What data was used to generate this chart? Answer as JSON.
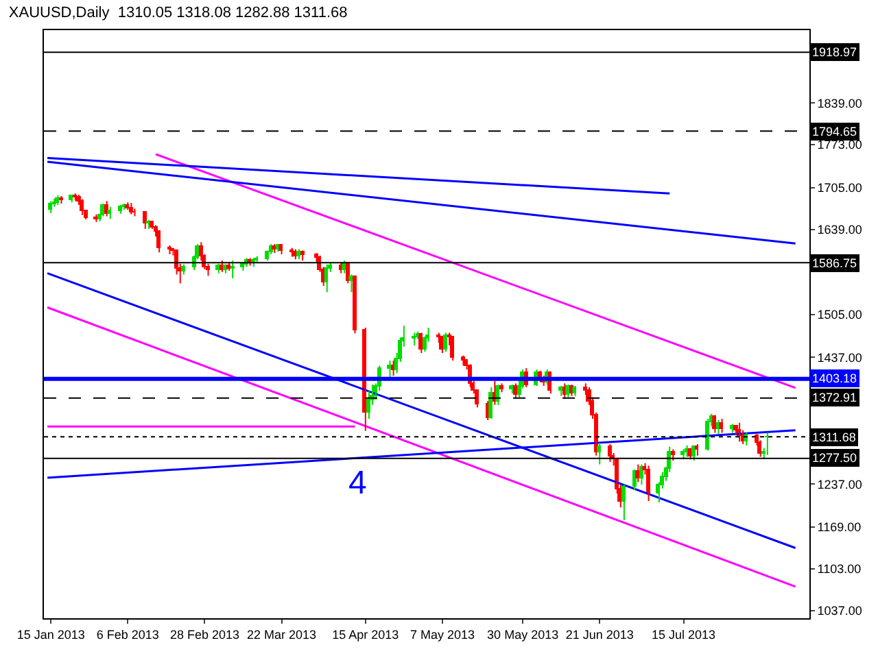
{
  "chart_data": {
    "type": "candlestick",
    "title": "XAUUSD,Daily  1310.05 1318.08 1282.88 1311.68",
    "x": [
      "2013-01-15",
      "2013-01-16",
      "2013-01-17",
      "2013-01-18",
      "2013-01-21",
      "2013-01-22",
      "2013-01-23",
      "2013-01-24",
      "2013-01-25",
      "2013-01-28",
      "2013-01-29",
      "2013-01-30",
      "2013-01-31",
      "2013-02-01",
      "2013-02-04",
      "2013-02-05",
      "2013-02-06",
      "2013-02-07",
      "2013-02-08",
      "2013-02-11",
      "2013-02-12",
      "2013-02-13",
      "2013-02-14",
      "2013-02-15",
      "2013-02-18",
      "2013-02-19",
      "2013-02-20",
      "2013-02-21",
      "2013-02-22",
      "2013-02-25",
      "2013-02-26",
      "2013-02-27",
      "2013-02-28",
      "2013-03-01",
      "2013-03-04",
      "2013-03-05",
      "2013-03-06",
      "2013-03-07",
      "2013-03-08",
      "2013-03-11",
      "2013-03-12",
      "2013-03-13",
      "2013-03-14",
      "2013-03-15",
      "2013-03-18",
      "2013-03-19",
      "2013-03-20",
      "2013-03-21",
      "2013-03-22",
      "2013-03-25",
      "2013-03-26",
      "2013-03-27",
      "2013-03-28",
      "2013-04-01",
      "2013-04-02",
      "2013-04-03",
      "2013-04-04",
      "2013-04-05",
      "2013-04-08",
      "2013-04-09",
      "2013-04-10",
      "2013-04-11",
      "2013-04-12",
      "2013-04-15",
      "2013-04-16",
      "2013-04-17",
      "2013-04-18",
      "2013-04-19",
      "2013-04-22",
      "2013-04-23",
      "2013-04-24",
      "2013-04-25",
      "2013-04-26",
      "2013-04-29",
      "2013-04-30",
      "2013-05-01",
      "2013-05-02",
      "2013-05-03",
      "2013-05-06",
      "2013-05-07",
      "2013-05-08",
      "2013-05-09",
      "2013-05-10",
      "2013-05-13",
      "2013-05-14",
      "2013-05-15",
      "2013-05-16",
      "2013-05-17",
      "2013-05-20",
      "2013-05-21",
      "2013-05-22",
      "2013-05-23",
      "2013-05-24",
      "2013-05-27",
      "2013-05-28",
      "2013-05-29",
      "2013-05-30",
      "2013-05-31",
      "2013-06-03",
      "2013-06-04",
      "2013-06-05",
      "2013-06-06",
      "2013-06-07",
      "2013-06-10",
      "2013-06-11",
      "2013-06-12",
      "2013-06-13",
      "2013-06-14",
      "2013-06-17",
      "2013-06-18",
      "2013-06-19",
      "2013-06-20",
      "2013-06-21",
      "2013-06-24",
      "2013-06-25",
      "2013-06-26",
      "2013-06-27",
      "2013-06-28",
      "2013-07-01",
      "2013-07-02",
      "2013-07-03",
      "2013-07-04",
      "2013-07-05",
      "2013-07-08",
      "2013-07-09",
      "2013-07-10",
      "2013-07-11",
      "2013-07-12",
      "2013-07-15",
      "2013-07-16",
      "2013-07-17",
      "2013-07-18",
      "2013-07-19",
      "2013-07-22",
      "2013-07-23",
      "2013-07-24",
      "2013-07-25",
      "2013-07-26",
      "2013-07-29",
      "2013-07-30",
      "2013-07-31",
      "2013-08-01",
      "2013-08-02",
      "2013-08-05",
      "2013-08-06",
      "2013-08-07",
      "2013-08-08"
    ],
    "ohlc": [
      [
        1670,
        1684,
        1665,
        1680
      ],
      [
        1680,
        1688,
        1675,
        1682
      ],
      [
        1682,
        1693,
        1678,
        1688
      ],
      [
        1688,
        1692,
        1680,
        1686
      ],
      [
        1686,
        1694,
        1682,
        1692
      ],
      [
        1692,
        1696,
        1685,
        1690
      ],
      [
        1690,
        1694,
        1678,
        1684
      ],
      [
        1684,
        1687,
        1662,
        1668
      ],
      [
        1668,
        1670,
        1655,
        1658
      ],
      [
        1658,
        1663,
        1651,
        1656
      ],
      [
        1656,
        1664,
        1652,
        1662
      ],
      [
        1662,
        1680,
        1660,
        1677
      ],
      [
        1677,
        1684,
        1660,
        1663
      ],
      [
        1663,
        1675,
        1656,
        1668
      ],
      [
        1668,
        1678,
        1664,
        1674
      ],
      [
        1674,
        1680,
        1670,
        1676
      ],
      [
        1676,
        1682,
        1670,
        1672
      ],
      [
        1672,
        1681,
        1663,
        1667
      ],
      [
        1667,
        1672,
        1660,
        1666
      ],
      [
        1666,
        1668,
        1640,
        1648
      ],
      [
        1648,
        1654,
        1640,
        1650
      ],
      [
        1650,
        1652,
        1640,
        1643
      ],
      [
        1643,
        1646,
        1628,
        1635
      ],
      [
        1635,
        1638,
        1603,
        1610
      ],
      [
        1610,
        1614,
        1600,
        1607
      ],
      [
        1607,
        1610,
        1598,
        1605
      ],
      [
        1605,
        1607,
        1568,
        1578
      ],
      [
        1578,
        1585,
        1554,
        1572
      ],
      [
        1572,
        1584,
        1568,
        1580
      ],
      [
        1580,
        1598,
        1575,
        1595
      ],
      [
        1595,
        1616,
        1592,
        1612
      ],
      [
        1612,
        1619,
        1590,
        1596
      ],
      [
        1596,
        1600,
        1576,
        1580
      ],
      [
        1580,
        1585,
        1566,
        1576
      ],
      [
        1576,
        1585,
        1570,
        1582
      ],
      [
        1582,
        1590,
        1572,
        1576
      ],
      [
        1576,
        1584,
        1570,
        1582
      ],
      [
        1582,
        1588,
        1574,
        1578
      ],
      [
        1578,
        1590,
        1562,
        1580
      ],
      [
        1580,
        1588,
        1574,
        1584
      ],
      [
        1584,
        1594,
        1580,
        1590
      ],
      [
        1590,
        1594,
        1582,
        1588
      ],
      [
        1588,
        1594,
        1580,
        1590
      ],
      [
        1590,
        1597,
        1586,
        1593
      ],
      [
        1593,
        1606,
        1590,
        1604
      ],
      [
        1604,
        1616,
        1600,
        1612
      ],
      [
        1612,
        1616,
        1602,
        1608
      ],
      [
        1608,
        1616,
        1604,
        1614
      ],
      [
        1614,
        1616,
        1600,
        1606
      ],
      [
        1606,
        1610,
        1596,
        1604
      ],
      [
        1604,
        1608,
        1592,
        1596
      ],
      [
        1596,
        1608,
        1592,
        1604
      ],
      [
        1604,
        1606,
        1590,
        1598
      ],
      [
        1598,
        1602,
        1588,
        1594
      ],
      [
        1594,
        1598,
        1572,
        1576
      ],
      [
        1576,
        1580,
        1550,
        1556
      ],
      [
        1556,
        1584,
        1540,
        1578
      ],
      [
        1578,
        1588,
        1572,
        1582
      ],
      [
        1582,
        1586,
        1570,
        1574
      ],
      [
        1574,
        1590,
        1570,
        1586
      ],
      [
        1586,
        1588,
        1554,
        1558
      ],
      [
        1558,
        1568,
        1540,
        1564
      ],
      [
        1564,
        1566,
        1475,
        1480
      ],
      [
        1480,
        1484,
        1321,
        1350
      ],
      [
        1350,
        1384,
        1340,
        1370
      ],
      [
        1370,
        1394,
        1362,
        1376
      ],
      [
        1376,
        1396,
        1370,
        1392
      ],
      [
        1392,
        1424,
        1384,
        1420
      ],
      [
        1420,
        1432,
        1404,
        1424
      ],
      [
        1424,
        1432,
        1408,
        1416
      ],
      [
        1416,
        1444,
        1412,
        1434
      ],
      [
        1434,
        1468,
        1430,
        1462
      ],
      [
        1462,
        1487,
        1454,
        1466
      ],
      [
        1466,
        1476,
        1456,
        1470
      ],
      [
        1470,
        1478,
        1466,
        1474
      ],
      [
        1474,
        1476,
        1444,
        1450
      ],
      [
        1450,
        1470,
        1446,
        1466
      ],
      [
        1466,
        1484,
        1462,
        1472
      ],
      [
        1472,
        1476,
        1460,
        1468
      ],
      [
        1468,
        1470,
        1444,
        1450
      ],
      [
        1450,
        1476,
        1446,
        1472
      ],
      [
        1472,
        1476,
        1456,
        1468
      ],
      [
        1468,
        1470,
        1432,
        1436
      ],
      [
        1436,
        1440,
        1424,
        1432
      ],
      [
        1432,
        1434,
        1418,
        1424
      ],
      [
        1424,
        1426,
        1390,
        1396
      ],
      [
        1396,
        1400,
        1380,
        1384
      ],
      [
        1384,
        1386,
        1358,
        1362
      ],
      [
        1362,
        1368,
        1338,
        1342
      ],
      [
        1342,
        1390,
        1340,
        1380
      ],
      [
        1380,
        1400,
        1362,
        1368
      ],
      [
        1368,
        1394,
        1362,
        1390
      ],
      [
        1390,
        1396,
        1382,
        1386
      ],
      [
        1386,
        1394,
        1380,
        1390
      ],
      [
        1390,
        1396,
        1372,
        1378
      ],
      [
        1378,
        1400,
        1374,
        1392
      ],
      [
        1392,
        1418,
        1388,
        1412
      ],
      [
        1412,
        1420,
        1390,
        1394
      ],
      [
        1394,
        1418,
        1392,
        1412
      ],
      [
        1412,
        1416,
        1398,
        1402
      ],
      [
        1402,
        1408,
        1392,
        1398
      ],
      [
        1398,
        1418,
        1394,
        1412
      ],
      [
        1412,
        1414,
        1380,
        1384
      ],
      [
        1384,
        1392,
        1376,
        1388
      ],
      [
        1388,
        1396,
        1372,
        1378
      ],
      [
        1378,
        1394,
        1374,
        1390
      ],
      [
        1390,
        1394,
        1376,
        1380
      ],
      [
        1380,
        1392,
        1376,
        1388
      ],
      [
        1388,
        1396,
        1378,
        1384
      ],
      [
        1384,
        1390,
        1362,
        1368
      ],
      [
        1368,
        1374,
        1340,
        1346
      ],
      [
        1346,
        1350,
        1282,
        1288
      ],
      [
        1288,
        1302,
        1268,
        1296
      ],
      [
        1296,
        1300,
        1272,
        1280
      ],
      [
        1280,
        1286,
        1266,
        1276
      ],
      [
        1276,
        1278,
        1222,
        1228
      ],
      [
        1228,
        1236,
        1200,
        1210
      ],
      [
        1210,
        1236,
        1180,
        1232
      ],
      [
        1232,
        1260,
        1228,
        1256
      ],
      [
        1256,
        1268,
        1240,
        1246
      ],
      [
        1246,
        1268,
        1236,
        1264
      ],
      [
        1264,
        1270,
        1252,
        1258
      ],
      [
        1258,
        1266,
        1210,
        1222
      ],
      [
        1222,
        1240,
        1208,
        1236
      ],
      [
        1236,
        1256,
        1230,
        1248
      ],
      [
        1248,
        1264,
        1242,
        1260
      ],
      [
        1260,
        1296,
        1256,
        1288
      ],
      [
        1288,
        1292,
        1274,
        1282
      ],
      [
        1282,
        1292,
        1276,
        1288
      ],
      [
        1288,
        1298,
        1280,
        1292
      ],
      [
        1292,
        1294,
        1276,
        1280
      ],
      [
        1280,
        1298,
        1274,
        1296
      ],
      [
        1296,
        1300,
        1282,
        1292
      ],
      [
        1292,
        1340,
        1290,
        1334
      ],
      [
        1334,
        1348,
        1328,
        1344
      ],
      [
        1344,
        1346,
        1318,
        1324
      ],
      [
        1324,
        1338,
        1316,
        1332
      ],
      [
        1332,
        1340,
        1318,
        1324
      ],
      [
        1324,
        1332,
        1318,
        1328
      ],
      [
        1328,
        1330,
        1316,
        1322
      ],
      [
        1322,
        1334,
        1304,
        1314
      ],
      [
        1314,
        1322,
        1300,
        1304
      ],
      [
        1304,
        1318,
        1298,
        1314
      ],
      [
        1314,
        1316,
        1298,
        1302
      ],
      [
        1302,
        1306,
        1280,
        1284
      ],
      [
        1284,
        1294,
        1276,
        1288
      ],
      [
        1310.05,
        1318.08,
        1282.88,
        1311.68
      ]
    ],
    "series": [
      {
        "type": "line",
        "color": "#ff00ff",
        "x": [
          "2013-02-14",
          "2013-08-16"
        ],
        "values": [
          1758,
          1389
        ]
      },
      {
        "type": "line",
        "color": "#ff00ff",
        "x": [
          "2013-01-14",
          "2013-08-16"
        ],
        "values": [
          1516,
          1075
        ]
      },
      {
        "type": "line",
        "color": "#ff00ff",
        "x": [
          "2013-01-14",
          "2013-04-12"
        ],
        "values": [
          1328,
          1328
        ]
      },
      {
        "type": "line",
        "color": "#0000ff",
        "x": [
          "2013-01-14",
          "2013-07-11"
        ],
        "values": [
          1752,
          1696
        ]
      },
      {
        "type": "line",
        "color": "#0000ff",
        "x": [
          "2013-01-14",
          "2013-08-16"
        ],
        "values": [
          1746,
          1617
        ]
      },
      {
        "type": "line",
        "color": "#0000ff",
        "x": [
          "2013-01-14",
          "2013-08-16"
        ],
        "values": [
          1570,
          1136
        ]
      },
      {
        "type": "line",
        "color": "#0000ff",
        "x": [
          "2013-01-14",
          "2013-08-16"
        ],
        "values": [
          1247,
          1322
        ]
      }
    ],
    "ref_lines": [
      {
        "axis": "y",
        "value": 1918.97,
        "label": "1918.97",
        "color": "#000000",
        "line_style": "solid"
      },
      {
        "axis": "y",
        "value": 1794.65,
        "label": "1794.65",
        "color": "#000000",
        "line_style": "dashed"
      },
      {
        "axis": "y",
        "value": 1586.75,
        "label": "1586.75",
        "color": "#000000",
        "line_style": "solid"
      },
      {
        "axis": "y",
        "value": 1403.18,
        "label": "1403.18",
        "color": "#0000ff",
        "line_style": "solid"
      },
      {
        "axis": "y",
        "value": 1372.91,
        "label": "1372.91",
        "color": "#000000",
        "line_style": "dashed"
      },
      {
        "axis": "y",
        "value": 1311.68,
        "label": "1311.68",
        "color": "#000000",
        "line_style": "dotted"
      },
      {
        "axis": "y",
        "value": 1277.5,
        "label": "1277.50",
        "color": "#000000",
        "line_style": "solid"
      }
    ],
    "annotations": [
      "4"
    ],
    "xlim": [
      "2013-01-13",
      "2013-08-20"
    ],
    "xticks": [
      {
        "value": "2013-01-15",
        "label": "15 Jan 2013"
      },
      {
        "value": "2013-02-06",
        "label": "6 Feb 2013"
      },
      {
        "value": "2013-02-28",
        "label": "28 Feb 2013"
      },
      {
        "value": "2013-03-22",
        "label": "22 Mar 2013"
      },
      {
        "value": "2013-04-15",
        "label": "15 Apr 2013"
      },
      {
        "value": "2013-05-07",
        "label": "7 May 2013"
      },
      {
        "value": "2013-05-30",
        "label": "30 May 2013"
      },
      {
        "value": "2013-06-21",
        "label": "21 Jun 2013"
      },
      {
        "value": "2013-07-15",
        "label": "15 Jul 2013"
      }
    ],
    "ylim": [
      1025,
      1954
    ],
    "yticks": [
      {
        "value": 1037,
        "label": "1037.00"
      },
      {
        "value": 1103,
        "label": "1103.00"
      },
      {
        "value": 1169,
        "label": "1169.00"
      },
      {
        "value": 1237,
        "label": "1237.00"
      },
      {
        "value": 1437,
        "label": "1437.00"
      },
      {
        "value": 1505,
        "label": "1505.00"
      },
      {
        "value": 1639,
        "label": "1639.00"
      },
      {
        "value": 1705,
        "label": "1705.00"
      },
      {
        "value": 1773,
        "label": "1773.00"
      },
      {
        "value": 1839,
        "label": "1839.00"
      }
    ],
    "marker": "none"
  }
}
